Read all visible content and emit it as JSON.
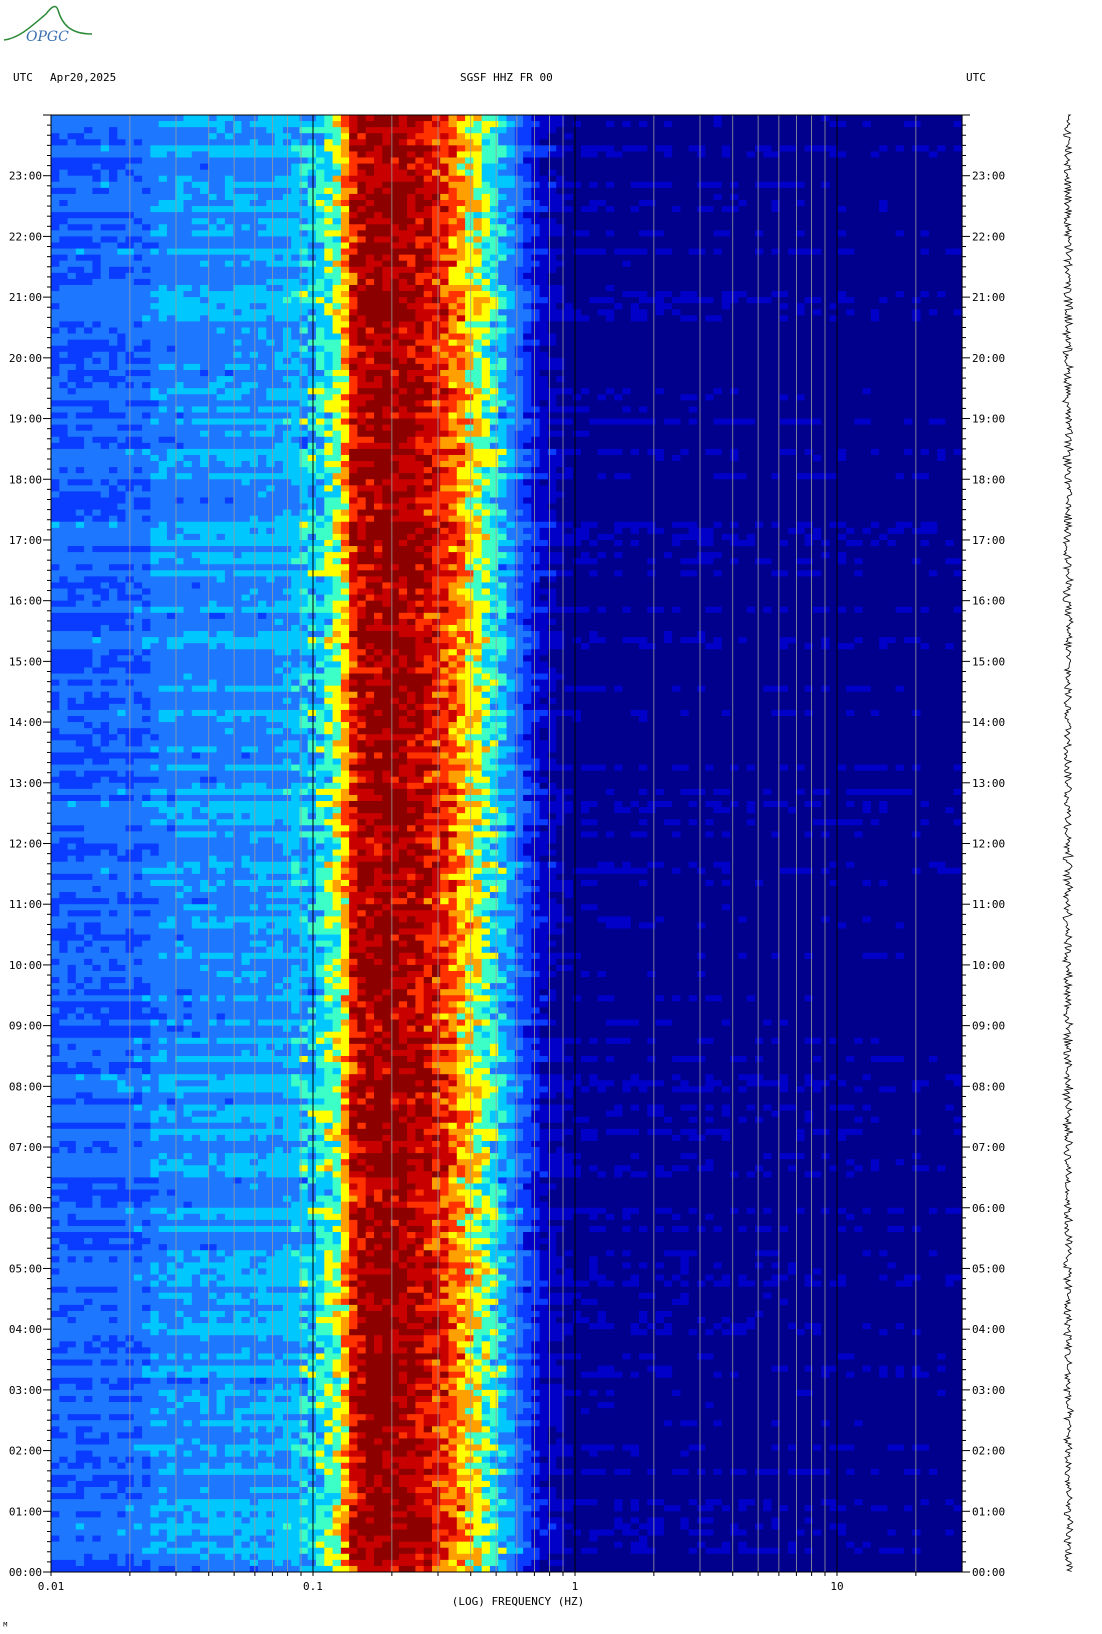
{
  "header": {
    "logo_text": "OPGC",
    "left_tz": "UTC",
    "date": "Apr20,2025",
    "station": "SGSF HHZ FR 00",
    "right_tz": "UTC"
  },
  "footer_mark": "ᴹ",
  "chart_data": {
    "type": "heatmap",
    "title": "SGSF HHZ FR 00",
    "xlabel": "(LOG) FREQUENCY (HZ)",
    "x_scale": "log",
    "xlim": [
      0.01,
      30
    ],
    "x_ticks": [
      {
        "value": 0.01,
        "label": "0.01"
      },
      {
        "value": 0.1,
        "label": "0.1"
      },
      {
        "value": 1,
        "label": "1"
      },
      {
        "value": 10,
        "label": "10"
      }
    ],
    "x_gridlines": [
      0.02,
      0.03,
      0.04,
      0.05,
      0.06,
      0.07,
      0.08,
      0.09,
      0.1,
      0.2,
      0.3,
      0.4,
      0.5,
      0.6,
      0.7,
      0.8,
      0.9,
      1,
      2,
      3,
      4,
      5,
      6,
      7,
      8,
      9,
      10,
      20
    ],
    "ylabel": "UTC",
    "ylim_hours": [
      0,
      24
    ],
    "y_ticks": [
      "00:00",
      "01:00",
      "02:00",
      "03:00",
      "04:00",
      "05:00",
      "06:00",
      "07:00",
      "08:00",
      "09:00",
      "10:00",
      "11:00",
      "12:00",
      "13:00",
      "14:00",
      "15:00",
      "16:00",
      "17:00",
      "18:00",
      "19:00",
      "20:00",
      "21:00",
      "22:00",
      "23:00"
    ],
    "colormap": [
      "#00008c",
      "#0000c8",
      "#0a3cff",
      "#1e78ff",
      "#00c8ff",
      "#3cffc8",
      "#ffff00",
      "#ffa000",
      "#ff3200",
      "#c80000",
      "#8c0000"
    ],
    "spectrum_profile": [
      {
        "f": 0.01,
        "level": 0.28
      },
      {
        "f": 0.024,
        "level": 0.3
      },
      {
        "f": 0.025,
        "level": 0.34
      },
      {
        "f": 0.07,
        "level": 0.36
      },
      {
        "f": 0.1,
        "level": 0.42
      },
      {
        "f": 0.12,
        "level": 0.52
      },
      {
        "f": 0.13,
        "level": 0.62
      },
      {
        "f": 0.145,
        "level": 0.88
      },
      {
        "f": 0.19,
        "level": 0.97
      },
      {
        "f": 0.25,
        "level": 0.9
      },
      {
        "f": 0.32,
        "level": 0.78
      },
      {
        "f": 0.4,
        "level": 0.62
      },
      {
        "f": 0.5,
        "level": 0.46
      },
      {
        "f": 0.6,
        "level": 0.3
      },
      {
        "f": 0.75,
        "level": 0.14
      },
      {
        "f": 1.0,
        "level": 0.05
      },
      {
        "f": 30,
        "level": 0.03
      }
    ],
    "grid": true,
    "side_trace": "seismogram"
  }
}
